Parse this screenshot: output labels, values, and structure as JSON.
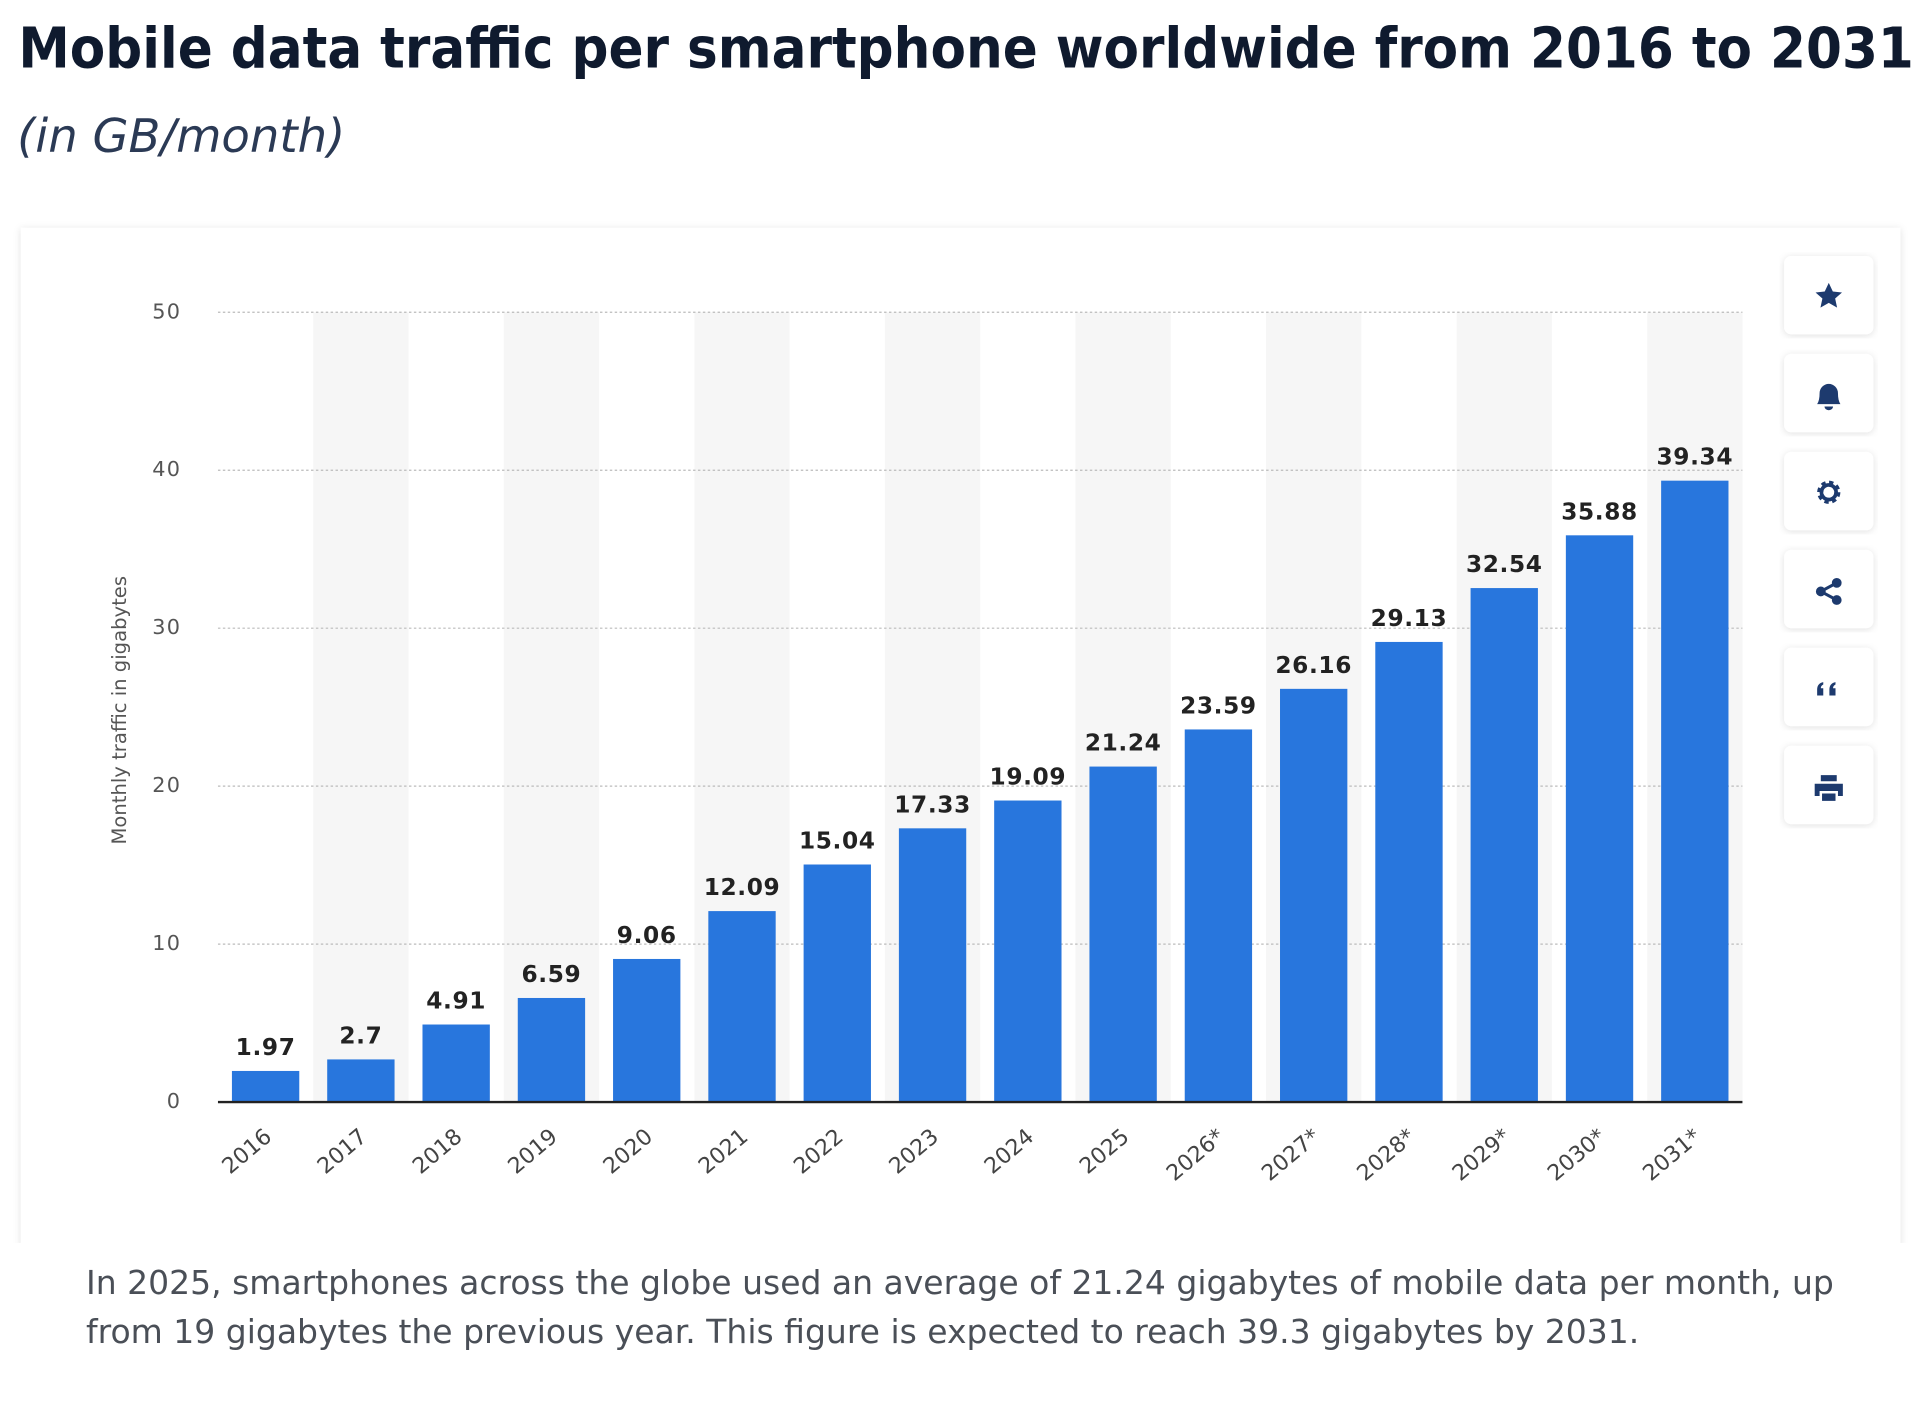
{
  "chart_data": {
    "type": "bar",
    "title": "Mobile data traffic per smartphone worldwide from 2016 to 2031",
    "subtitle": "(in GB/month)",
    "y_label": "Monthly traffic in gigabytes",
    "categories": [
      "2016",
      "2017",
      "2018",
      "2019",
      "2020",
      "2021",
      "2022",
      "2023",
      "2024",
      "2025",
      "2026*",
      "2027*",
      "2028*",
      "2029*",
      "2030*",
      "2031*"
    ],
    "values": [
      1.97,
      2.7,
      4.91,
      6.59,
      9.06,
      12.09,
      15.04,
      17.33,
      19.09,
      21.24,
      23.59,
      26.16,
      29.13,
      32.54,
      35.88,
      39.34
    ],
    "color": "#2876dd",
    "ylim": [
      0,
      50
    ],
    "yticks": [
      0,
      10,
      20,
      30,
      40,
      50
    ],
    "grid": true,
    "description": "In 2025, smartphones across the globe used an average of 21.24 gigabytes of mobile data per month, up from 19 gigabytes the previous year. This figure is expected to reach 39.3 gigabytes by 2031."
  }
}
